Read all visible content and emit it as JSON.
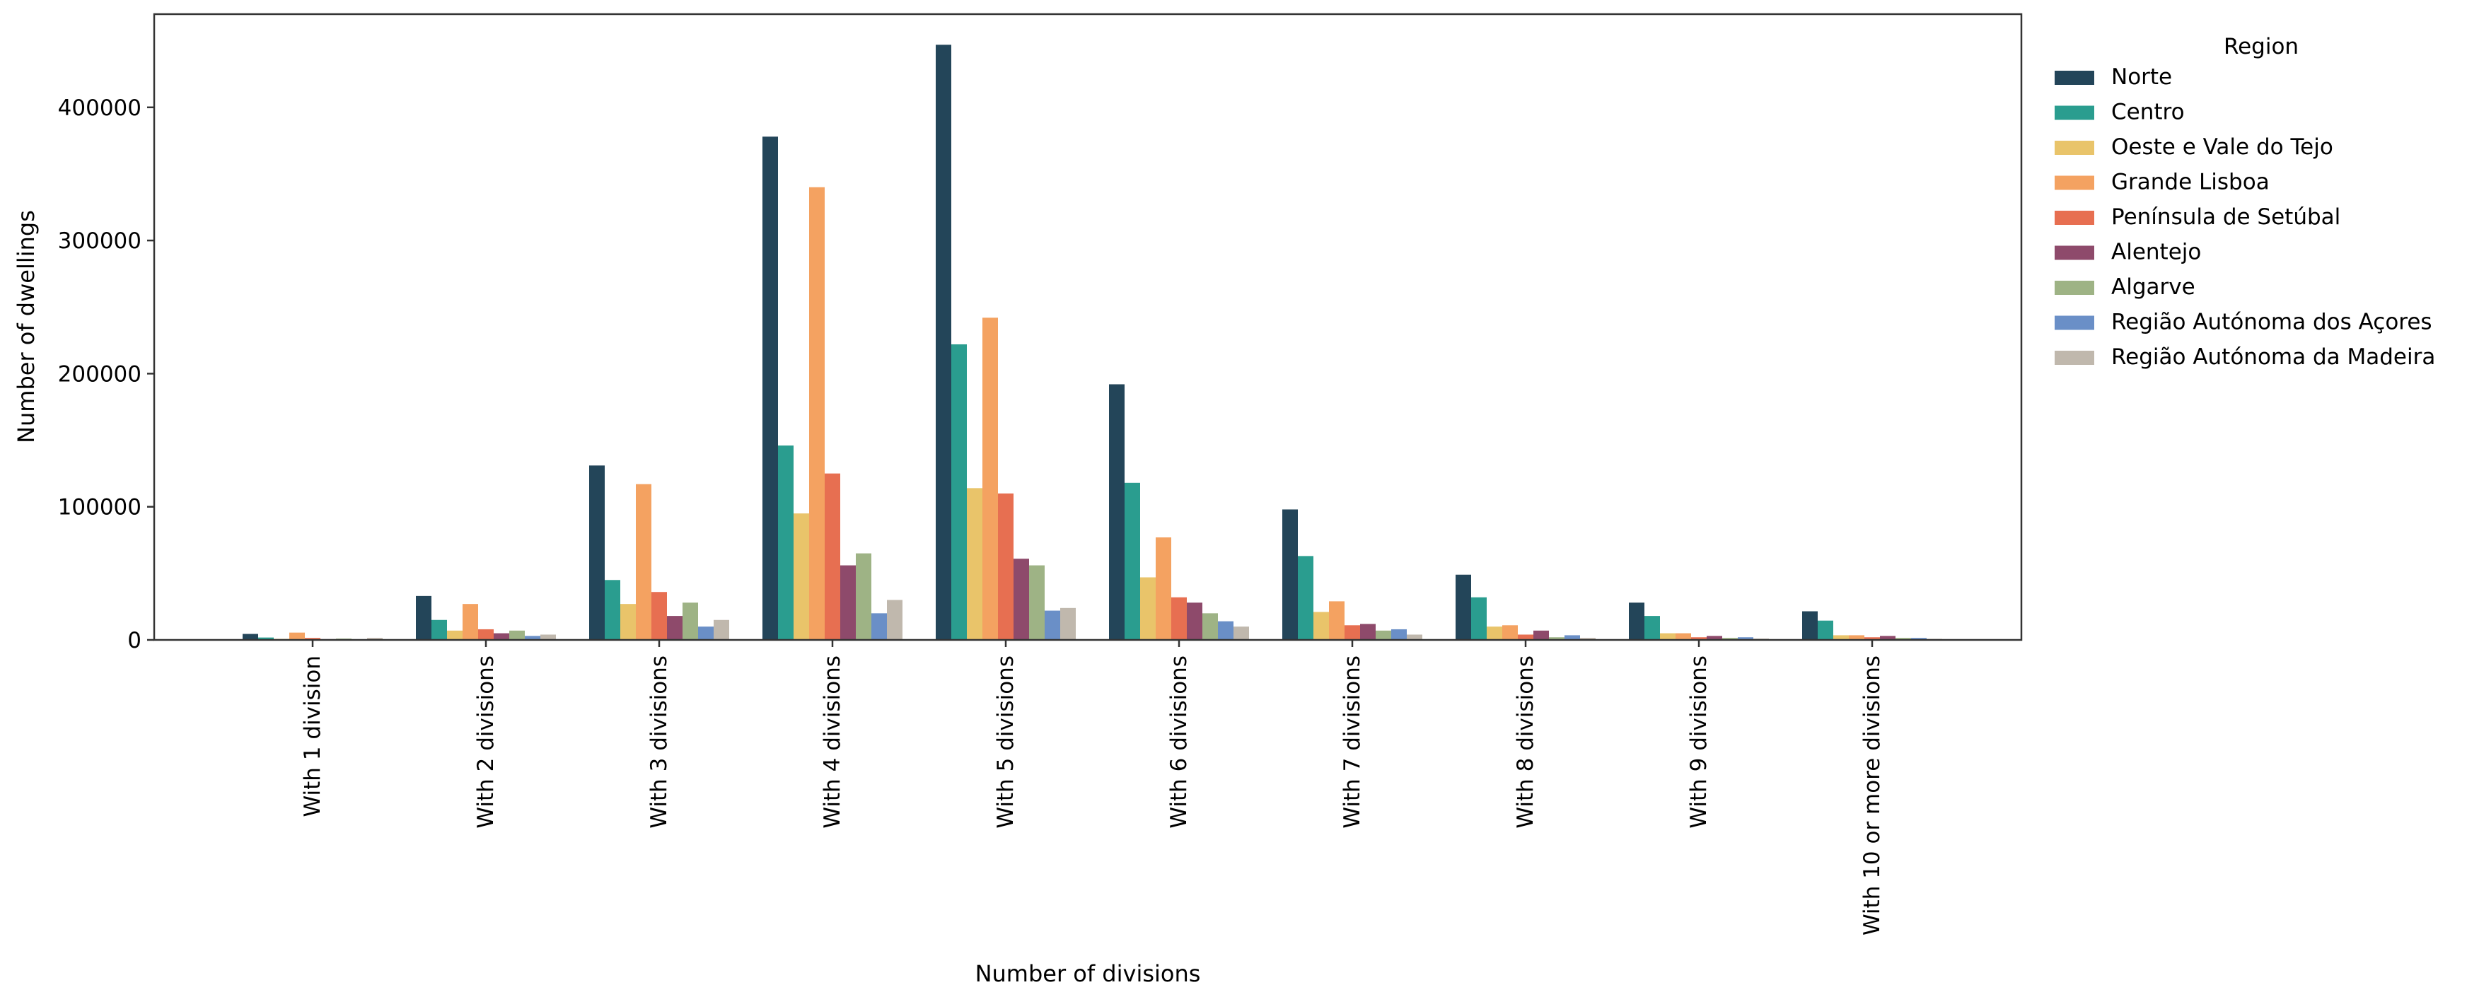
{
  "chart_data": {
    "type": "bar",
    "title": "",
    "xlabel": "Number of divisions",
    "ylabel": "Number of dwellings",
    "ylim": [
      0,
      470000
    ],
    "yticks": [
      0,
      100000,
      200000,
      300000,
      400000
    ],
    "grid": false,
    "legend_title": "Region",
    "legend_position": "outside-right-top",
    "categories": [
      "With 1 division",
      "With 2 divisions",
      "With 3 divisions",
      "With 4 divisions",
      "With 5 divisions",
      "With 6 divisions",
      "With 7 divisions",
      "With 8 divisions",
      "With 9 divisions",
      "With 10 or more divisions"
    ],
    "series": [
      {
        "name": "Norte",
        "color": "#234559",
        "values": [
          4500,
          33000,
          131000,
          378000,
          447000,
          192000,
          98000,
          49000,
          28000,
          21500
        ]
      },
      {
        "name": "Centro",
        "color": "#2a9d8f",
        "values": [
          1800,
          15000,
          45000,
          146000,
          222000,
          118000,
          63000,
          32000,
          18000,
          14500
        ]
      },
      {
        "name": "Oeste e Vale do Tejo",
        "color": "#e9c46a",
        "values": [
          800,
          7000,
          27000,
          95000,
          114000,
          47000,
          21000,
          10000,
          5000,
          3500
        ]
      },
      {
        "name": "Grande Lisboa",
        "color": "#f4a261",
        "values": [
          5500,
          27000,
          117000,
          340000,
          242000,
          77000,
          29000,
          11000,
          5000,
          3500
        ]
      },
      {
        "name": "Península de Setúbal",
        "color": "#e76f51",
        "values": [
          1500,
          8000,
          36000,
          125000,
          110000,
          32000,
          11000,
          4000,
          2000,
          2000
        ]
      },
      {
        "name": "Alentejo",
        "color": "#8e4a6b",
        "values": [
          600,
          5000,
          18000,
          56000,
          61000,
          28000,
          12000,
          7000,
          3000,
          3000
        ]
      },
      {
        "name": "Algarve",
        "color": "#9eb385",
        "values": [
          1000,
          7000,
          28000,
          65000,
          56000,
          20000,
          7000,
          2000,
          1500,
          1500
        ]
      },
      {
        "name": "Região Autónoma dos Açores",
        "color": "#6a8fc7",
        "values": [
          400,
          3000,
          10000,
          20000,
          22000,
          14000,
          8000,
          3500,
          2000,
          1500
        ]
      },
      {
        "name": "Região Autónoma da Madeira",
        "color": "#c0b8ad",
        "values": [
          1500,
          4000,
          15000,
          30000,
          24000,
          10000,
          4000,
          1500,
          1000,
          800
        ]
      }
    ]
  }
}
